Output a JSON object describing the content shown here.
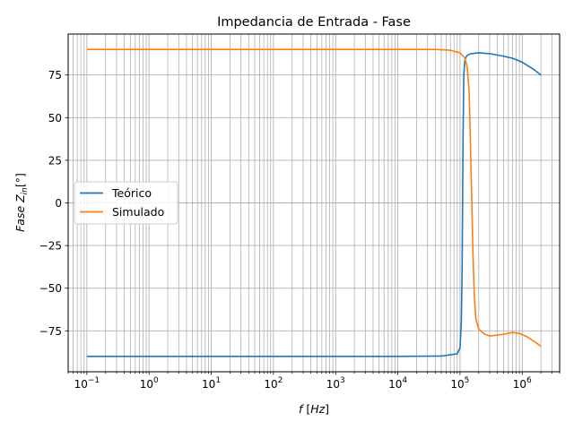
{
  "chart_data": {
    "type": "line",
    "title": "Impedancia de Entrada - Fase",
    "xlabel": "f   [Hz]",
    "ylabel": "Fase   Z_in[°]",
    "xscale": "log",
    "xlim": [
      0.05,
      4000000
    ],
    "ylim": [
      -99,
      99
    ],
    "yticks": [
      -75,
      -50,
      -25,
      0,
      25,
      50,
      75
    ],
    "xtick_exponents": [
      -1,
      0,
      1,
      2,
      3,
      4,
      5,
      6
    ],
    "grid": true,
    "legend_position": "center-left",
    "series": [
      {
        "name": "Teórico",
        "color": "#1f77b4",
        "x": [
          0.1,
          1,
          10,
          100,
          1000,
          10000,
          50000,
          90000,
          100000,
          105000,
          108000,
          110000,
          112000,
          115000,
          120000,
          130000,
          150000,
          200000,
          300000,
          500000,
          700000,
          1000000,
          1500000,
          2000000
        ],
        "y": [
          -90,
          -90,
          -90,
          -90,
          -90,
          -90,
          -89.8,
          -88.5,
          -85,
          -70,
          -40,
          0,
          40,
          75,
          84,
          86.5,
          87.5,
          88,
          87.5,
          86,
          84.8,
          82.5,
          78.5,
          75
        ]
      },
      {
        "name": "Simulado",
        "color": "#ff7f0e",
        "x": [
          0.1,
          1,
          10,
          100,
          1000,
          10000,
          40000,
          70000,
          100000,
          120000,
          130000,
          140000,
          145000,
          150000,
          155000,
          160000,
          170000,
          180000,
          200000,
          250000,
          300000,
          400000,
          500000,
          700000,
          900000,
          1200000,
          1600000,
          2000000
        ],
        "y": [
          90,
          90,
          90,
          90,
          90,
          90,
          90,
          89.5,
          88,
          85,
          80,
          65,
          45,
          20,
          0,
          -25,
          -55,
          -68,
          -74,
          -77,
          -78,
          -77.5,
          -77,
          -76,
          -76.5,
          -78.5,
          -81.5,
          -84
        ]
      }
    ]
  }
}
